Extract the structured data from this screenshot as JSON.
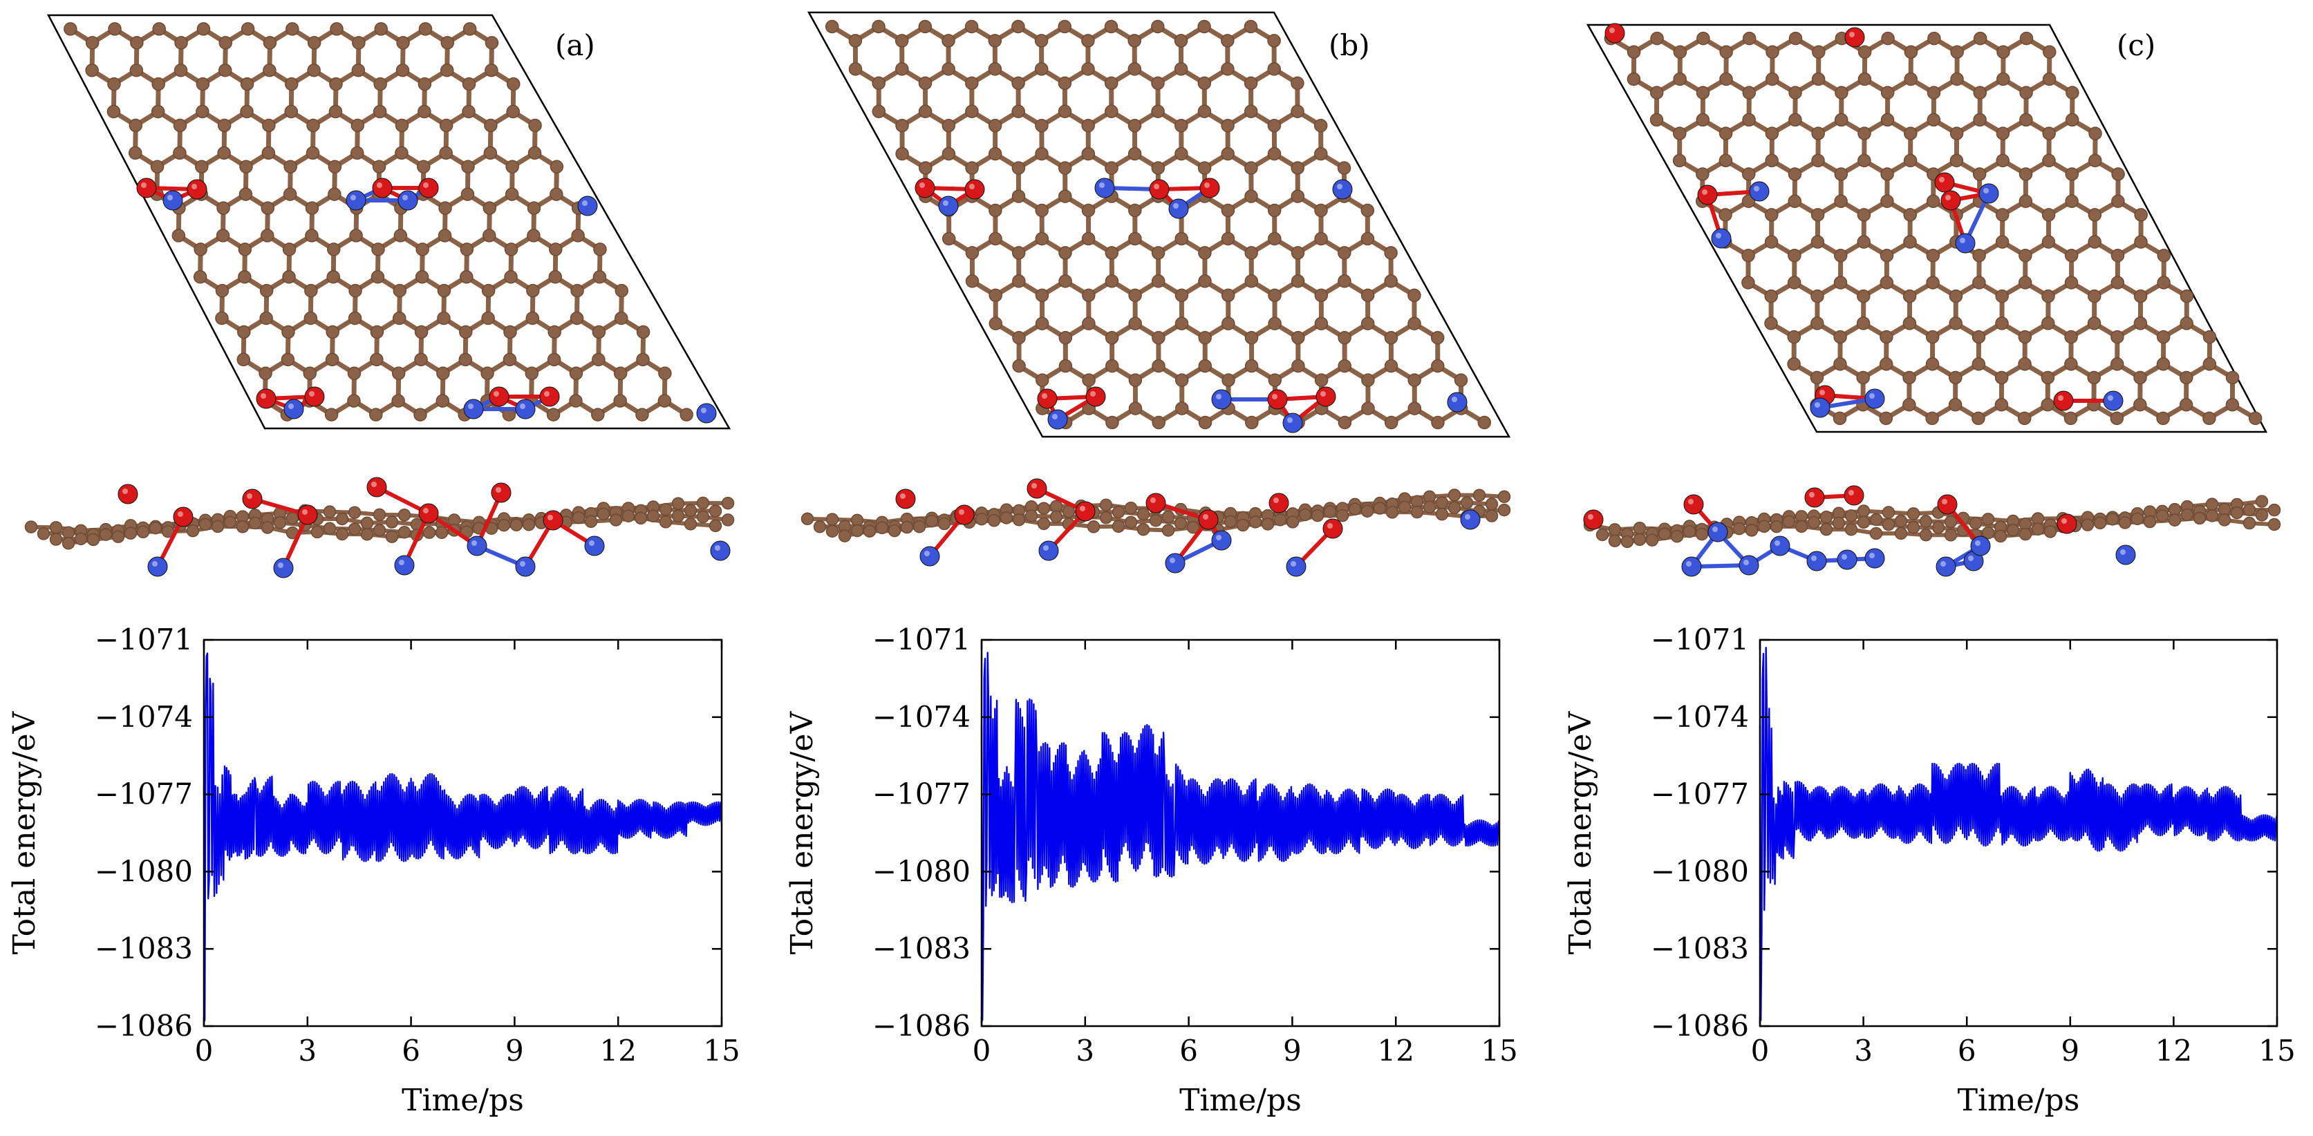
{
  "panels": [
    {
      "label": "(a)"
    },
    {
      "label": "(b)"
    },
    {
      "label": "(c)"
    }
  ],
  "colors": {
    "carbon": "#8a6248",
    "carbon_dark": "#6e4a34",
    "oxygen": "#d81818",
    "nitrogen": "#3a55d8",
    "series": "#0000ee"
  },
  "chart_data": [
    {
      "type": "line",
      "xlabel": "Time/ps",
      "ylabel": "Total energy/eV",
      "xlim": [
        0,
        15
      ],
      "ylim": [
        -1086,
        -1071
      ],
      "xticks": [
        "0",
        "3",
        "6",
        "9",
        "12",
        "15"
      ],
      "yticks": [
        "−1071",
        "−1074",
        "−1077",
        "−1080",
        "−1083",
        "−1086"
      ],
      "grid": false,
      "legend": "none",
      "series": [
        {
          "x": [
            0,
            0.05,
            0.1,
            0.15,
            0.2,
            0.3,
            0.4,
            0.5,
            0.6,
            0.8,
            1.0,
            1.2,
            1.5,
            2,
            2.5,
            3,
            4,
            5,
            6,
            7,
            8,
            9,
            10,
            11,
            12,
            13,
            14,
            15
          ],
          "y": [
            -1085.8,
            -1074.0,
            -1071.3,
            -1082.2,
            -1072.5,
            -1081.0,
            -1076.0,
            -1080.5,
            -1075.9,
            -1079.8,
            -1077.0,
            -1079.5,
            -1076.3,
            -1079.4,
            -1077.0,
            -1079.3,
            -1076.5,
            -1079.6,
            -1076.2,
            -1079.5,
            -1077.0,
            -1079.1,
            -1076.7,
            -1079.3,
            -1077.2,
            -1078.7,
            -1077.3,
            -1078.2
          ]
        }
      ]
    },
    {
      "type": "line",
      "xlabel": "Time/ps",
      "ylabel": "Total energy/eV",
      "xlim": [
        0,
        15
      ],
      "ylim": [
        -1086,
        -1071
      ],
      "xticks": [
        "0",
        "3",
        "6",
        "9",
        "12",
        "15"
      ],
      "yticks": [
        "−1071",
        "−1074",
        "−1077",
        "−1080",
        "−1083",
        "−1086"
      ],
      "grid": false,
      "legend": "none",
      "series": [
        {
          "x": [
            0,
            0.05,
            0.1,
            0.15,
            0.2,
            0.3,
            0.5,
            0.7,
            1.0,
            1.3,
            1.6,
            2,
            2.5,
            3,
            3.5,
            4,
            4.5,
            5,
            5.3,
            5.6,
            6,
            7,
            8,
            9,
            10,
            11,
            12,
            13,
            14,
            15
          ],
          "y": [
            -1085.8,
            -1071.0,
            -1082.5,
            -1071.5,
            -1081.5,
            -1073.0,
            -1081.0,
            -1075.5,
            -1081.2,
            -1073.3,
            -1081.0,
            -1075.0,
            -1080.6,
            -1075.3,
            -1080.4,
            -1074.6,
            -1080.0,
            -1074.3,
            -1080.2,
            -1075.8,
            -1079.7,
            -1076.4,
            -1079.6,
            -1076.6,
            -1079.3,
            -1076.8,
            -1079.1,
            -1077.0,
            -1079.0,
            -1078.0
          ]
        }
      ]
    },
    {
      "type": "line",
      "xlabel": "Time/ps",
      "ylabel": "Total energy/eV",
      "xlim": [
        0,
        15
      ],
      "ylim": [
        -1086,
        -1071
      ],
      "xticks": [
        "0",
        "3",
        "6",
        "9",
        "12",
        "15"
      ],
      "yticks": [
        "−1071",
        "−1074",
        "−1077",
        "−1080",
        "−1083",
        "−1086"
      ],
      "grid": false,
      "legend": "none",
      "series": [
        {
          "x": [
            0,
            0.05,
            0.1,
            0.15,
            0.2,
            0.3,
            0.4,
            0.5,
            0.7,
            1.0,
            1.5,
            2,
            3,
            4,
            5,
            6,
            7,
            8,
            9,
            9.5,
            10,
            11,
            12,
            13,
            14,
            15
          ],
          "y": [
            -1085.8,
            -1071.0,
            -1082.7,
            -1071.3,
            -1081.0,
            -1073.5,
            -1080.5,
            -1076.5,
            -1079.5,
            -1076.5,
            -1078.8,
            -1076.7,
            -1078.7,
            -1076.6,
            -1078.9,
            -1075.8,
            -1079.0,
            -1076.7,
            -1078.8,
            -1076.0,
            -1079.2,
            -1076.6,
            -1078.6,
            -1076.7,
            -1078.8,
            -1077.8
          ]
        }
      ]
    }
  ]
}
